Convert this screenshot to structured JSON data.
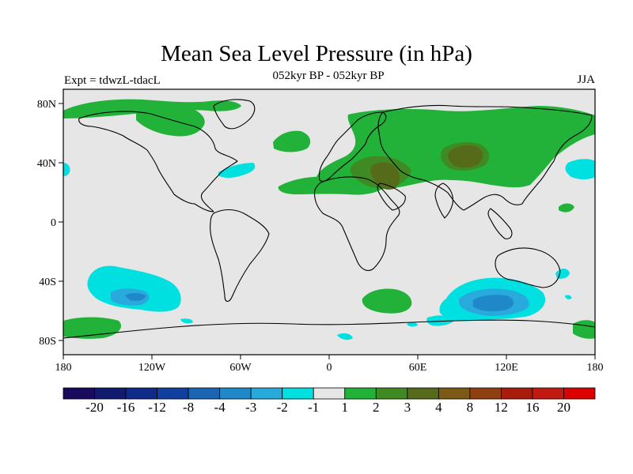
{
  "title": "Mean Sea Level Pressure (in hPa)",
  "subtitle": "052kyr BP - 052kyr BP",
  "experiment_label": "Expt = tdwzL-tdacL",
  "season_label": "JJA",
  "map": {
    "projection": "cylindrical equidistant",
    "variable": "Mean Sea Level Pressure difference",
    "units": "hPa",
    "lon_range": [
      -180,
      180
    ],
    "lat_range": [
      -90,
      90
    ],
    "x_ticks": [
      "180",
      "120W",
      "60W",
      "0",
      "60E",
      "120E",
      "180"
    ],
    "y_ticks": [
      "80N",
      "40N",
      "0",
      "40S",
      "80S"
    ],
    "background_color": "#e6e6e6",
    "coastline_color": "#000000"
  },
  "colorbar": {
    "labels": [
      "-20",
      "-16",
      "-12",
      "-8",
      "-4",
      "-3",
      "-2",
      "-1",
      "1",
      "2",
      "3",
      "4",
      "8",
      "12",
      "16",
      "20"
    ],
    "colors": [
      "#1a0a5e",
      "#101a6e",
      "#102a8a",
      "#10409f",
      "#1a66b4",
      "#1e88c8",
      "#28aadc",
      "#00e0e0",
      "#e6e6e6",
      "#22b23a",
      "#3f8a22",
      "#556b1a",
      "#7a5a14",
      "#8f3f10",
      "#a81c0c",
      "#c21a12",
      "#dc0000"
    ]
  }
}
